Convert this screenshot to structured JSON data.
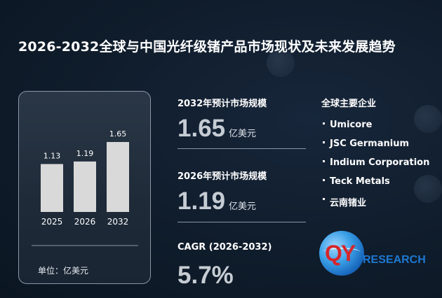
{
  "title": "2026-2032全球与中国光纤级锗产品市场现状及未来发展趋势",
  "chart_data": {
    "type": "bar",
    "categories": [
      "2025",
      "2026",
      "2032"
    ],
    "values": [
      1.13,
      1.19,
      1.65
    ],
    "data_labels": [
      "1.13",
      "1.19",
      "1.65"
    ],
    "unit_label": "单位：亿美元",
    "bar_color": "#d9d9d9"
  },
  "metrics": [
    {
      "label": "2032年预计市场规模",
      "value": "1.65",
      "unit": "亿美元"
    },
    {
      "label": "2026年预计市场规模",
      "value": "1.19",
      "unit": "亿美元"
    },
    {
      "label": "CAGR (2026-2032)",
      "value": "5.7%",
      "unit": ""
    }
  ],
  "companies": {
    "title": "全球主要企业",
    "items": [
      "Umicore",
      "JSC Germanium",
      "Indium Corporation",
      "Teck Metals",
      "云南锗业"
    ]
  },
  "logo": {
    "mark": "QY",
    "text": "RESEARCH"
  },
  "colors": {
    "background": "#0f1c2b",
    "accent_red": "#d6262b",
    "accent_blue": "#1e78d2"
  }
}
